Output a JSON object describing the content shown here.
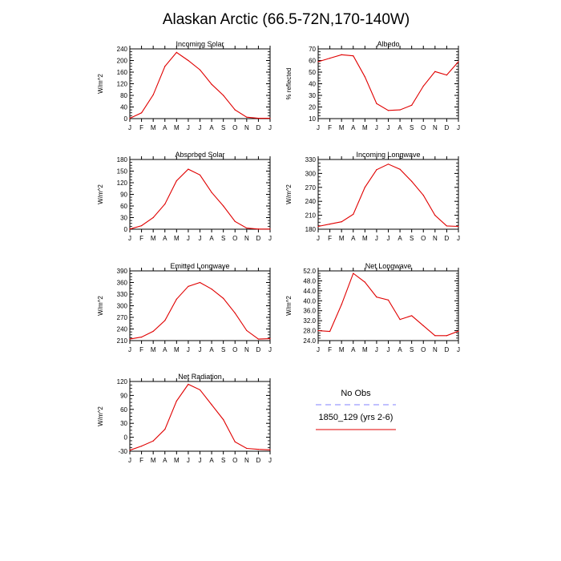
{
  "figure": {
    "title": "Alaskan Arctic (66.5-72N,170-140W)"
  },
  "legend": {
    "entries": [
      {
        "label": "No Obs",
        "color": "#8080ff",
        "dash": true
      },
      {
        "label": "1850_129 (yrs 2-6)",
        "color": "#e00000",
        "dash": false
      }
    ]
  },
  "colors": {
    "series": "#e00000",
    "axis": "#000000"
  },
  "chart_data": [
    {
      "type": "line",
      "title": "Incoming Solar",
      "ylabel": "W/m^2",
      "x": [
        "J",
        "F",
        "M",
        "A",
        "M",
        "J",
        "J",
        "A",
        "S",
        "O",
        "N",
        "D",
        "J"
      ],
      "ylim": [
        0,
        240
      ],
      "yticks": [
        "0",
        "40",
        "80",
        "120",
        "160",
        "200",
        "240"
      ],
      "series": [
        {
          "values": [
            1,
            20,
            82,
            180,
            228,
            200,
            168,
            118,
            80,
            30,
            5,
            1,
            1
          ]
        }
      ]
    },
    {
      "type": "line",
      "title": "Albedo",
      "ylabel": "% reflected",
      "x": [
        "J",
        "F",
        "M",
        "A",
        "M",
        "J",
        "J",
        "A",
        "S",
        "O",
        "N",
        "D",
        "J"
      ],
      "ylim": [
        10,
        70
      ],
      "yticks": [
        "10",
        "20",
        "30",
        "40",
        "50",
        "60",
        "70"
      ],
      "series": [
        {
          "values": [
            59,
            62,
            65,
            64,
            46,
            23,
            17,
            17.5,
            21.5,
            38,
            50.5,
            47.5,
            59
          ]
        }
      ]
    },
    {
      "type": "line",
      "title": "Absorbed Solar",
      "ylabel": "W/m^2",
      "x": [
        "J",
        "F",
        "M",
        "A",
        "M",
        "J",
        "J",
        "A",
        "S",
        "O",
        "N",
        "D",
        "J"
      ],
      "ylim": [
        0,
        180
      ],
      "yticks": [
        "0",
        "30",
        "60",
        "90",
        "120",
        "150",
        "180"
      ],
      "series": [
        {
          "values": [
            0.5,
            9,
            30,
            65,
            125,
            155,
            140,
            95,
            60,
            20,
            3,
            0.5,
            0.5
          ]
        }
      ]
    },
    {
      "type": "line",
      "title": "Incoming Longwave",
      "ylabel": "W/m^2",
      "x": [
        "J",
        "F",
        "M",
        "A",
        "M",
        "J",
        "J",
        "A",
        "S",
        "O",
        "N",
        "D",
        "J"
      ],
      "ylim": [
        180,
        330
      ],
      "yticks": [
        "180",
        "210",
        "240",
        "270",
        "300",
        "330"
      ],
      "series": [
        {
          "values": [
            186,
            191,
            196,
            212,
            270,
            308,
            320,
            309,
            283,
            253,
            210,
            187,
            186
          ]
        }
      ]
    },
    {
      "type": "line",
      "title": "Emitted Longwave",
      "ylabel": "W/m^2",
      "x": [
        "J",
        "F",
        "M",
        "A",
        "M",
        "J",
        "J",
        "A",
        "S",
        "O",
        "N",
        "D",
        "J"
      ],
      "ylim": [
        210,
        390
      ],
      "yticks": [
        "210",
        "240",
        "270",
        "300",
        "330",
        "360",
        "390"
      ],
      "series": [
        {
          "values": [
            214,
            219,
            234,
            262,
            317,
            350,
            360,
            343,
            319,
            281,
            236,
            214,
            215
          ]
        }
      ]
    },
    {
      "type": "line",
      "title": "Net Longwave",
      "ylabel": "W/m^2",
      "x": [
        "J",
        "F",
        "M",
        "A",
        "M",
        "J",
        "J",
        "A",
        "S",
        "O",
        "N",
        "D",
        "J"
      ],
      "ylim": [
        24,
        52
      ],
      "yticks": [
        "24.0",
        "28.0",
        "32.0",
        "36.0",
        "40.0",
        "44.0",
        "48.0",
        "52.0"
      ],
      "series": [
        {
          "values": [
            28,
            27.7,
            38.5,
            51,
            47.5,
            41.5,
            40.3,
            32.5,
            34,
            30,
            26,
            26,
            27.8
          ]
        }
      ]
    },
    {
      "type": "line",
      "title": "Net Radiation",
      "ylabel": "W/m^2",
      "x": [
        "J",
        "F",
        "M",
        "A",
        "M",
        "J",
        "J",
        "A",
        "S",
        "O",
        "N",
        "D",
        "J"
      ],
      "ylim": [
        -30,
        120
      ],
      "yticks": [
        "-30",
        "0",
        "30",
        "60",
        "90",
        "120"
      ],
      "series": [
        {
          "values": [
            -28,
            -19,
            -8,
            17,
            78,
            114,
            102,
            70,
            38,
            -10,
            -24,
            -26,
            -27
          ]
        }
      ]
    }
  ]
}
